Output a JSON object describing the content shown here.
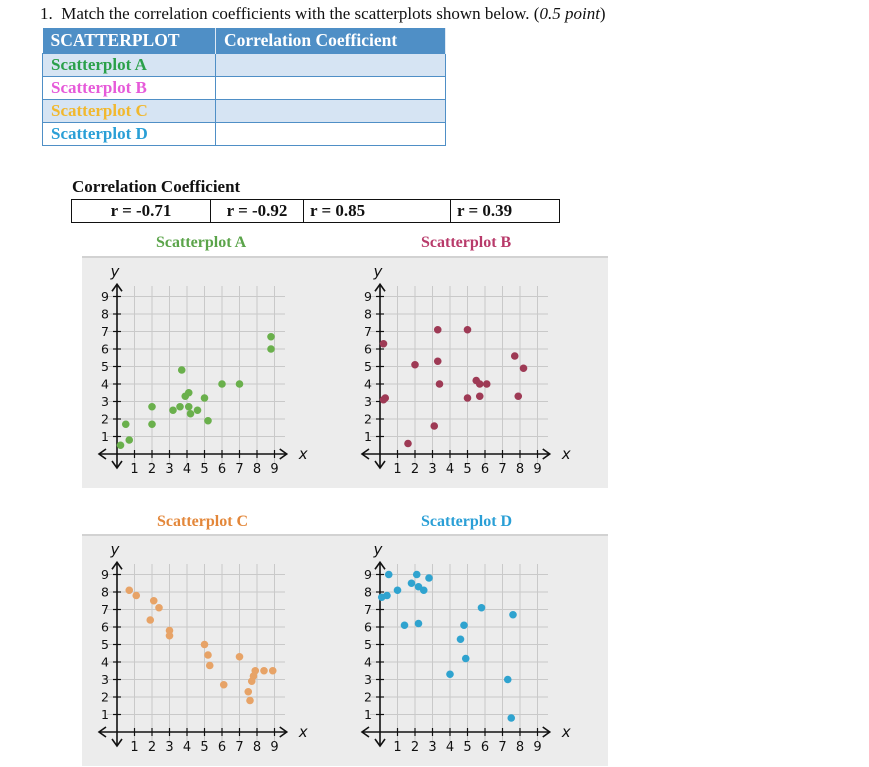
{
  "question": {
    "number": "1.",
    "text": "Match the correlation coefficients with the scatterplots shown below. (",
    "points": "0.5 point",
    "close": ")"
  },
  "match_table": {
    "headers": [
      "SCATTERPLOT",
      "Correlation Coefficient"
    ],
    "rows": [
      {
        "label": "Scatterplot A",
        "color": "#2aa04a",
        "answer": ""
      },
      {
        "label": "Scatterplot B",
        "color": "#e65ad9",
        "answer": ""
      },
      {
        "label": "Scatterplot C",
        "color": "#f1b82e",
        "answer": ""
      },
      {
        "label": "Scatterplot D",
        "color": "#2a9fd6",
        "answer": ""
      }
    ]
  },
  "coefficients": {
    "title": "Correlation Coefficient",
    "values": [
      "r = -0.71",
      "r = -0.92",
      "r = 0.85",
      "r = 0.39"
    ]
  },
  "colors": {
    "header_bg": "#4f8fc6",
    "shade": "#d6e4f3",
    "plot_bg": "#ececec"
  },
  "chart_data": [
    {
      "type": "scatter",
      "title": "Scatterplot A",
      "title_color": "#5ba44a",
      "color": "#6ab04c",
      "xlabel": "x",
      "ylabel": "y",
      "xlim": [
        0,
        9
      ],
      "ylim": [
        0,
        9
      ],
      "x_ticks": [
        1,
        2,
        3,
        4,
        5,
        6,
        7,
        8,
        9
      ],
      "y_ticks": [
        1,
        2,
        3,
        4,
        5,
        6,
        7,
        8,
        9
      ],
      "grid": true,
      "points": [
        [
          0.2,
          0.5
        ],
        [
          0.5,
          1.7
        ],
        [
          0.7,
          0.8
        ],
        [
          2,
          2.7
        ],
        [
          2,
          1.7
        ],
        [
          3.2,
          2.5
        ],
        [
          3.6,
          2.7
        ],
        [
          3.7,
          4.8
        ],
        [
          3.9,
          3.3
        ],
        [
          4.1,
          3.5
        ],
        [
          4.1,
          2.7
        ],
        [
          4.2,
          2.3
        ],
        [
          4.6,
          2.5
        ],
        [
          5,
          3.2
        ],
        [
          5.2,
          1.9
        ],
        [
          6,
          4
        ],
        [
          7,
          4
        ],
        [
          8.8,
          6
        ],
        [
          8.8,
          6.7
        ]
      ]
    },
    {
      "type": "scatter",
      "title": "Scatterplot B",
      "title_color": "#b83a6a",
      "color": "#9e3a55",
      "xlabel": "x",
      "ylabel": "y",
      "xlim": [
        0,
        9
      ],
      "ylim": [
        0,
        9
      ],
      "x_ticks": [
        1,
        2,
        3,
        4,
        5,
        6,
        7,
        8,
        9
      ],
      "y_ticks": [
        1,
        2,
        3,
        4,
        5,
        6,
        7,
        8,
        9
      ],
      "grid": true,
      "points": [
        [
          0.2,
          6.3
        ],
        [
          0.2,
          3.1
        ],
        [
          0.3,
          3.2
        ],
        [
          1.6,
          0.6
        ],
        [
          2,
          5.1
        ],
        [
          3.1,
          1.6
        ],
        [
          3.3,
          7.1
        ],
        [
          3.3,
          5.3
        ],
        [
          3.4,
          4
        ],
        [
          5,
          7.1
        ],
        [
          5,
          3.2
        ],
        [
          5.5,
          4.2
        ],
        [
          5.7,
          4
        ],
        [
          5.7,
          3.3
        ],
        [
          6.1,
          4
        ],
        [
          7.7,
          5.6
        ],
        [
          7.9,
          3.3
        ],
        [
          8.2,
          4.9
        ]
      ]
    },
    {
      "type": "scatter",
      "title": "Scatterplot C",
      "title_color": "#e3873a",
      "color": "#e7a367",
      "xlabel": "x",
      "ylabel": "y",
      "xlim": [
        0,
        9
      ],
      "ylim": [
        0,
        9
      ],
      "x_ticks": [
        1,
        2,
        3,
        4,
        5,
        6,
        7,
        8,
        9
      ],
      "y_ticks": [
        1,
        2,
        3,
        4,
        5,
        6,
        7,
        8,
        9
      ],
      "grid": true,
      "points": [
        [
          0.7,
          8.1
        ],
        [
          1.1,
          7.8
        ],
        [
          1.9,
          6.4
        ],
        [
          2.1,
          7.5
        ],
        [
          2.4,
          7.1
        ],
        [
          3,
          5.8
        ],
        [
          3,
          5.5
        ],
        [
          5,
          5
        ],
        [
          5.2,
          4.4
        ],
        [
          5.3,
          3.8
        ],
        [
          6.1,
          2.7
        ],
        [
          7,
          4.3
        ],
        [
          7.5,
          2.3
        ],
        [
          7.6,
          1.8
        ],
        [
          7.7,
          2.9
        ],
        [
          7.8,
          3.2
        ],
        [
          7.9,
          3.5
        ],
        [
          8.4,
          3.5
        ],
        [
          8.9,
          3.5
        ]
      ]
    },
    {
      "type": "scatter",
      "title": "Scatterplot D",
      "title_color": "#2a9fd6",
      "color": "#2fa3cf",
      "xlabel": "x",
      "ylabel": "y",
      "xlim": [
        0,
        9
      ],
      "ylim": [
        0,
        9
      ],
      "x_ticks": [
        1,
        2,
        3,
        4,
        5,
        6,
        7,
        8,
        9
      ],
      "y_ticks": [
        1,
        2,
        3,
        4,
        5,
        6,
        7,
        8,
        9
      ],
      "grid": true,
      "points": [
        [
          0.1,
          7.7
        ],
        [
          0.4,
          7.8
        ],
        [
          0.5,
          9
        ],
        [
          1,
          8.1
        ],
        [
          1.4,
          6.1
        ],
        [
          1.8,
          8.5
        ],
        [
          2.1,
          9
        ],
        [
          2.2,
          8.3
        ],
        [
          2.2,
          6.2
        ],
        [
          2.5,
          8.1
        ],
        [
          2.8,
          8.8
        ],
        [
          4,
          3.3
        ],
        [
          4.6,
          5.3
        ],
        [
          4.8,
          6.1
        ],
        [
          4.9,
          4.2
        ],
        [
          5.8,
          7.1
        ],
        [
          7.3,
          3
        ],
        [
          7.5,
          0.8
        ],
        [
          7.6,
          6.7
        ]
      ]
    }
  ]
}
